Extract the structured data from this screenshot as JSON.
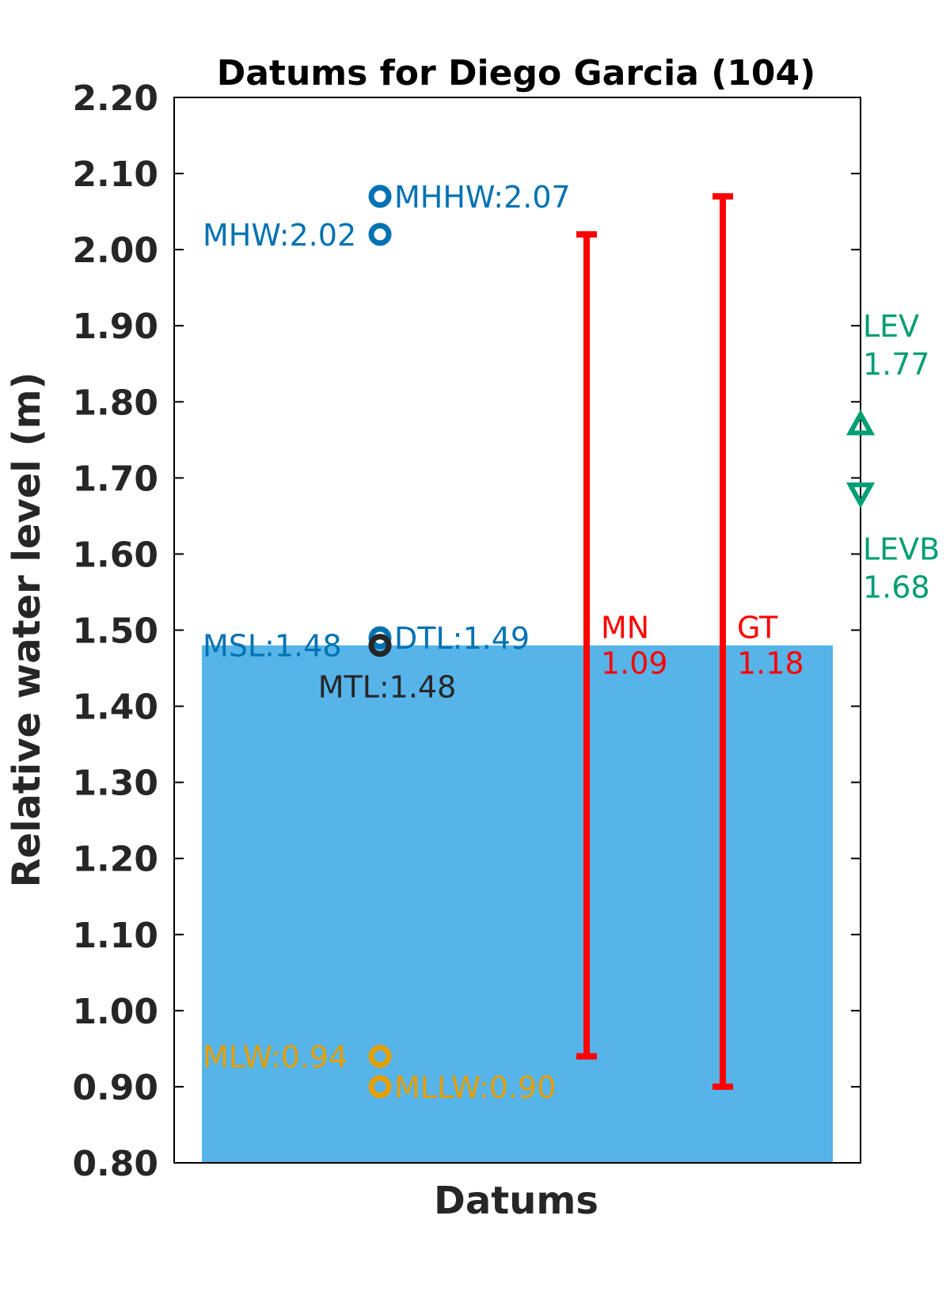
{
  "chart_data": {
    "type": "scatter",
    "title": "Datums for Diego Garcia (104)",
    "xlabel": "Datums",
    "ylabel": "Relative water level (m)",
    "ylim": [
      0.8,
      2.2
    ],
    "yticks": [
      "0.80",
      "0.90",
      "1.00",
      "1.10",
      "1.20",
      "1.30",
      "1.40",
      "1.50",
      "1.60",
      "1.70",
      "1.80",
      "1.90",
      "2.00",
      "2.10",
      "2.20"
    ],
    "grid": false,
    "colors": {
      "fill": "#56b4e9",
      "high": "#0072b2",
      "low": "#e69f00",
      "mtl": "#262626",
      "range": "#ff0000",
      "lev": "#009e73"
    },
    "fill_level": 1.48,
    "datums": [
      {
        "name": "MHHW",
        "value": 2.07,
        "label": "MHHW:2.07",
        "color": "high",
        "side": "right"
      },
      {
        "name": "MHW",
        "value": 2.02,
        "label": "MHW:2.02",
        "color": "high",
        "side": "left"
      },
      {
        "name": "MSL",
        "value": 1.48,
        "label": "MSL:1.48",
        "color": "high",
        "side": "left"
      },
      {
        "name": "DTL",
        "value": 1.49,
        "label": "DTL:1.49",
        "color": "high",
        "side": "right"
      },
      {
        "name": "MTL",
        "value": 1.48,
        "label": "MTL:1.48",
        "color": "mtl",
        "side": "below"
      },
      {
        "name": "MLW",
        "value": 0.94,
        "label": "MLW:0.94",
        "color": "low",
        "side": "left"
      },
      {
        "name": "MLLW",
        "value": 0.9,
        "label": "MLLW:0.90",
        "color": "low",
        "side": "right"
      }
    ],
    "ranges": [
      {
        "name": "MN",
        "low": 0.94,
        "high": 2.02,
        "label": "MN",
        "value_label": "1.09"
      },
      {
        "name": "GT",
        "low": 0.9,
        "high": 2.07,
        "label": "GT",
        "value_label": "1.18"
      }
    ],
    "extremes": [
      {
        "name": "LEV",
        "value": 1.77,
        "label": "LEV",
        "value_label": "1.77",
        "marker": "triangle-up"
      },
      {
        "name": "LEVB",
        "value": 1.68,
        "label": "LEVB",
        "value_label": "1.68",
        "marker": "triangle-down"
      }
    ]
  }
}
